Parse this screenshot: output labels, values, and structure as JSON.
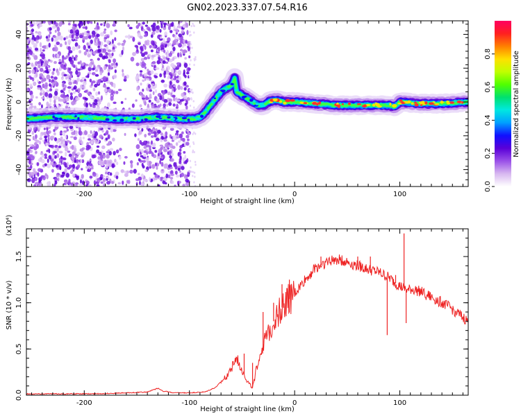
{
  "title": "GN02.2023.337.07.54.R16",
  "chart_data": [
    {
      "type": "heatmap",
      "title": "",
      "xlabel": "Height of straight line (km)",
      "ylabel": "Frequency (Hz)",
      "xlim": [
        -255,
        165
      ],
      "ylim": [
        -50,
        48
      ],
      "xticks": [
        -200,
        -100,
        0,
        100
      ],
      "xtick_labels": [
        "-200",
        "-100",
        "0",
        "100"
      ],
      "yticks": [
        -40,
        -20,
        0,
        20,
        40
      ],
      "ytick_labels": [
        "-40",
        "-20",
        "0",
        "20",
        "40"
      ],
      "colorbar": {
        "label": "Normalized spectral amplitude",
        "range": [
          0,
          1
        ],
        "ticks": [
          0.0,
          0.2,
          0.4,
          0.6,
          0.8
        ],
        "tick_labels": [
          "0.0",
          "0.2",
          "0.4",
          "0.6",
          "0.8"
        ],
        "colors": [
          "#ffffff",
          "#d8b8f0",
          "#9a50e8",
          "#5a00d8",
          "#1010ff",
          "#00a0ff",
          "#00e8e0",
          "#00e070",
          "#50ff00",
          "#c0ff00",
          "#ffe000",
          "#ff8000",
          "#ff2020",
          "#ff0060"
        ]
      },
      "ridge": {
        "x": [
          -255,
          -230,
          -200,
          -170,
          -150,
          -130,
          -110,
          -100,
          -95,
          -90,
          -85,
          -80,
          -75,
          -70,
          -65,
          -60,
          -57,
          -55,
          -50,
          -45,
          -40,
          -35,
          -30,
          -25,
          -20,
          -15,
          -10,
          -5,
          0,
          20,
          40,
          60,
          80,
          90,
          95,
          100,
          120,
          140,
          165
        ],
        "freq": [
          -10,
          -9,
          -9,
          -10,
          -10,
          -9,
          -10,
          -10,
          -10,
          -9,
          -6,
          -2,
          2,
          6,
          8,
          10,
          14,
          6,
          4,
          2,
          0,
          -2,
          -2,
          0,
          1,
          1,
          0,
          0,
          0,
          -1,
          -2,
          -2,
          -2,
          -2,
          -3,
          0,
          -1,
          -1,
          0
        ]
      }
    },
    {
      "type": "line",
      "title": "",
      "xlabel": "Height of straight line (km)",
      "ylabel": "SNR (10 * v/v)",
      "y_multiplier": "(x10⁴)",
      "xlim": [
        -255,
        165
      ],
      "ylim": [
        0,
        1.8
      ],
      "xticks": [
        -200,
        -100,
        0,
        100
      ],
      "xtick_labels": [
        "-200",
        "-100",
        "0",
        "100"
      ],
      "yticks": [
        0.0,
        0.5,
        1.0,
        1.5
      ],
      "ytick_labels": [
        "0.0",
        "0.5",
        "1.0",
        "1.5"
      ],
      "color": "#ee2222",
      "series": [
        {
          "name": "SNR",
          "x": [
            -255,
            -220,
            -190,
            -160,
            -140,
            -135,
            -130,
            -125,
            -115,
            -100,
            -85,
            -75,
            -65,
            -60,
            -55,
            -50,
            -45,
            -40,
            -35,
            -30,
            -25,
            -20,
            -15,
            -10,
            0,
            10,
            20,
            30,
            40,
            50,
            55,
            60,
            70,
            80,
            85,
            90,
            95,
            100,
            105,
            108,
            110,
            120,
            130,
            140,
            150,
            160,
            165
          ],
          "y": [
            0.01,
            0.01,
            0.01,
            0.02,
            0.03,
            0.05,
            0.07,
            0.04,
            0.02,
            0.02,
            0.03,
            0.08,
            0.2,
            0.3,
            0.4,
            0.28,
            0.15,
            0.08,
            0.35,
            0.55,
            0.65,
            0.8,
            0.9,
            0.98,
            1.1,
            1.25,
            1.38,
            1.44,
            1.47,
            1.44,
            1.42,
            1.4,
            1.36,
            1.33,
            1.3,
            1.27,
            1.22,
            1.18,
            1.15,
            1.13,
            1.15,
            1.12,
            1.06,
            1.0,
            0.93,
            0.84,
            0.8
          ]
        }
      ],
      "spikes": {
        "x": [
          -48,
          -40,
          -30,
          -20,
          -12,
          -5,
          25,
          60,
          72,
          88,
          96,
          104,
          106
        ],
        "y": [
          0.45,
          0.35,
          0.9,
          1.0,
          1.2,
          1.25,
          1.5,
          1.5,
          1.5,
          0.65,
          1.3,
          1.75,
          0.78
        ]
      }
    }
  ]
}
